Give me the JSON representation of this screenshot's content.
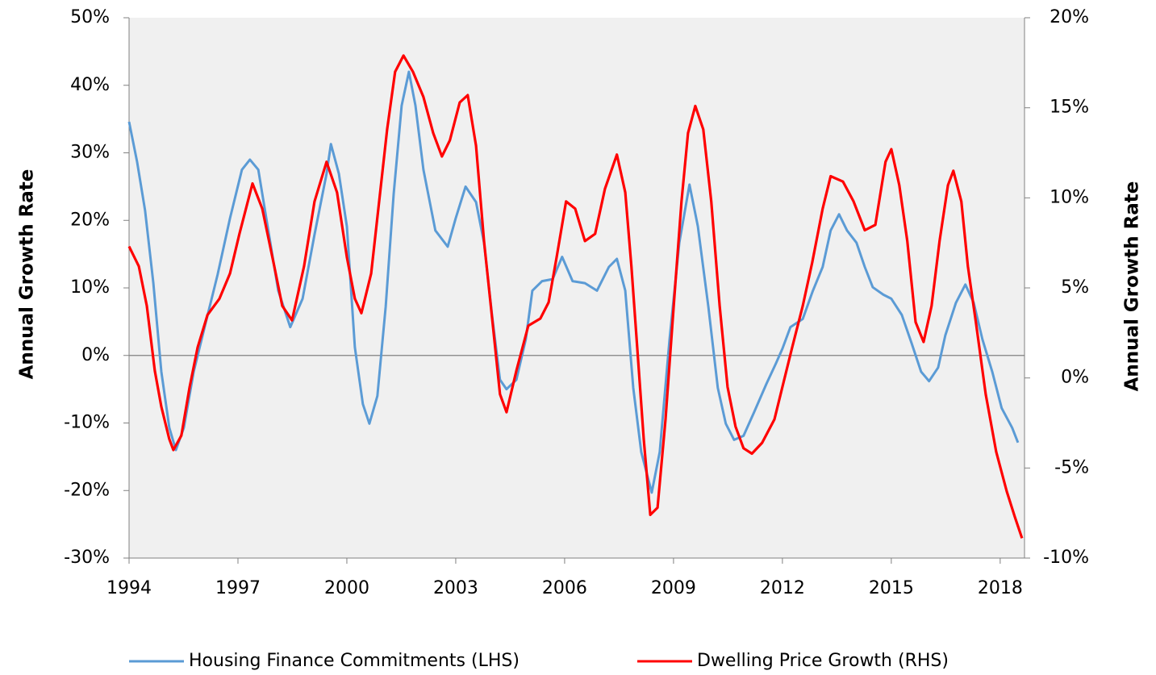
{
  "chart_data": {
    "type": "line",
    "y_label": "Annual Growth Rate",
    "y2_label": "Annual Growth Rate",
    "xlim": [
      1994,
      2018.67
    ],
    "xticks": [
      1994,
      1997,
      2000,
      2003,
      2006,
      2009,
      2012,
      2015,
      2018
    ],
    "ylim": [
      -30,
      50
    ],
    "yticks": [
      {
        "value": -30,
        "label": "-30%"
      },
      {
        "value": -20,
        "label": "-20%"
      },
      {
        "value": -10,
        "label": "-10%"
      },
      {
        "value": 0,
        "label": "0%"
      },
      {
        "value": 10,
        "label": "10%"
      },
      {
        "value": 20,
        "label": "20%"
      },
      {
        "value": 30,
        "label": "30%"
      },
      {
        "value": 40,
        "label": "40%"
      },
      {
        "value": 50,
        "label": "50%"
      }
    ],
    "y2lim": [
      -10,
      20
    ],
    "y2ticks": [
      {
        "value": -10,
        "label": "-10%"
      },
      {
        "value": -5,
        "label": "-5%"
      },
      {
        "value": 0,
        "label": "0%"
      },
      {
        "value": 5,
        "label": "5%"
      },
      {
        "value": 10,
        "label": "10%"
      },
      {
        "value": 15,
        "label": "15%"
      },
      {
        "value": 20,
        "label": "20%"
      }
    ],
    "legend": "bottom",
    "series": [
      {
        "name": "Housing Finance Commitments (LHS)",
        "color": "#5b9bd5",
        "axis": "y",
        "x": [
          1994.0,
          1994.22,
          1994.44,
          1994.67,
          1994.89,
          1995.11,
          1995.29,
          1995.51,
          1995.78,
          1996.11,
          1996.44,
          1996.78,
          1997.11,
          1997.33,
          1997.56,
          1997.78,
          1998.11,
          1998.44,
          1998.78,
          1999.11,
          1999.44,
          1999.56,
          1999.78,
          2000.0,
          2000.22,
          2000.44,
          2000.62,
          2000.84,
          2001.07,
          2001.29,
          2001.51,
          2001.71,
          2001.89,
          2002.11,
          2002.44,
          2002.78,
          2003.0,
          2003.27,
          2003.56,
          2003.78,
          2004.0,
          2004.22,
          2004.4,
          2004.67,
          2004.93,
          2005.11,
          2005.38,
          2005.67,
          2005.93,
          2006.22,
          2006.56,
          2006.89,
          2007.22,
          2007.44,
          2007.67,
          2007.89,
          2008.11,
          2008.4,
          2008.62,
          2008.89,
          2009.16,
          2009.44,
          2009.67,
          2009.96,
          2010.22,
          2010.44,
          2010.67,
          2010.93,
          2011.22,
          2011.56,
          2011.82,
          2012.0,
          2012.22,
          2012.56,
          2012.84,
          2013.11,
          2013.33,
          2013.56,
          2013.78,
          2014.04,
          2014.27,
          2014.49,
          2014.78,
          2015.0,
          2015.29,
          2015.56,
          2015.82,
          2016.04,
          2016.29,
          2016.49,
          2016.78,
          2017.04,
          2017.27,
          2017.51,
          2017.78,
          2018.04,
          2018.33,
          2018.49
        ],
        "values": [
          34.6,
          28.7,
          21.5,
          10.7,
          -2.4,
          -10.7,
          -14,
          -10.7,
          -2.4,
          4.8,
          12,
          20.3,
          27.5,
          29,
          27.5,
          20.3,
          9.6,
          4.2,
          8.4,
          17.9,
          26.9,
          31.3,
          26.9,
          19.1,
          1.2,
          -7.2,
          -10.1,
          -6,
          7.2,
          23.9,
          37,
          42,
          37,
          27.5,
          18.5,
          16.1,
          20.3,
          25,
          22.7,
          16.7,
          6,
          -3.6,
          -5,
          -3.6,
          2.4,
          9.6,
          11,
          11.3,
          14.6,
          11,
          10.7,
          9.6,
          13.1,
          14.3,
          9.6,
          -4.8,
          -14.3,
          -20.3,
          -14.3,
          2.4,
          16.7,
          25.3,
          19.1,
          7.2,
          -4.8,
          -10.1,
          -12.5,
          -11.9,
          -8.4,
          -4.2,
          -1.2,
          1,
          4.2,
          5.4,
          9.6,
          13.1,
          18.5,
          20.9,
          18.5,
          16.7,
          13.1,
          10.1,
          9,
          8.4,
          6,
          1.8,
          -2.4,
          -3.8,
          -1.8,
          3,
          7.8,
          10.5,
          7.8,
          2.4,
          -2.4,
          -7.8,
          -10.7,
          -12.9
        ]
      },
      {
        "name": "Dwelling Price Growth (RHS)",
        "color": "#ff0000",
        "axis": "y2",
        "x": [
          1994.0,
          1994.27,
          1994.49,
          1994.71,
          1994.89,
          1995.11,
          1995.22,
          1995.44,
          1995.67,
          1995.89,
          1996.16,
          1996.49,
          1996.78,
          1997.04,
          1997.4,
          1997.67,
          1998.0,
          1998.22,
          1998.49,
          1998.82,
          1999.11,
          1999.44,
          1999.73,
          2000.0,
          2000.22,
          2000.4,
          2000.67,
          2000.89,
          2001.11,
          2001.33,
          2001.56,
          2001.82,
          2002.11,
          2002.38,
          2002.62,
          2002.84,
          2003.11,
          2003.33,
          2003.56,
          2003.78,
          2004.04,
          2004.22,
          2004.4,
          2004.67,
          2005.0,
          2005.33,
          2005.56,
          2005.78,
          2006.04,
          2006.29,
          2006.56,
          2006.84,
          2007.11,
          2007.44,
          2007.67,
          2007.84,
          2008.0,
          2008.18,
          2008.36,
          2008.56,
          2008.78,
          2009.02,
          2009.22,
          2009.4,
          2009.6,
          2009.82,
          2010.04,
          2010.27,
          2010.49,
          2010.71,
          2010.93,
          2011.16,
          2011.44,
          2011.78,
          2012.0,
          2012.27,
          2012.56,
          2012.82,
          2013.11,
          2013.33,
          2013.67,
          2013.96,
          2014.27,
          2014.56,
          2014.84,
          2015.0,
          2015.22,
          2015.44,
          2015.67,
          2015.89,
          2016.11,
          2016.33,
          2016.56,
          2016.71,
          2016.93,
          2017.11,
          2017.33,
          2017.6,
          2017.89,
          2018.18,
          2018.4,
          2018.6
        ],
        "values": [
          7.3,
          6.2,
          4,
          0.4,
          -1.6,
          -3.4,
          -4,
          -3.2,
          -0.5,
          1.7,
          3.5,
          4.4,
          5.8,
          8,
          10.8,
          9.4,
          6.2,
          4,
          3.2,
          6.2,
          9.8,
          12,
          10.3,
          6.7,
          4.4,
          3.6,
          5.8,
          9.8,
          13.8,
          17,
          17.9,
          17,
          15.6,
          13.6,
          12.3,
          13.2,
          15.3,
          15.7,
          12.9,
          7.6,
          2.6,
          -0.9,
          -1.9,
          0.4,
          2.9,
          3.3,
          4.2,
          6.7,
          9.8,
          9.4,
          7.6,
          8,
          10.5,
          12.4,
          10.3,
          6.2,
          1.7,
          -3.4,
          -7.6,
          -7.2,
          -2.3,
          4.4,
          9.8,
          13.6,
          15.1,
          13.8,
          9.8,
          4,
          -0.5,
          -2.7,
          -3.9,
          -4.2,
          -3.6,
          -2.3,
          -0.5,
          1.7,
          4,
          6.4,
          9.4,
          11.2,
          10.9,
          9.8,
          8.2,
          8.5,
          12,
          12.7,
          10.7,
          7.6,
          3.1,
          2,
          4,
          7.6,
          10.7,
          11.5,
          9.8,
          6.2,
          3.1,
          -0.9,
          -4.1,
          -6.3,
          -7.7,
          -8.9
        ]
      }
    ]
  }
}
